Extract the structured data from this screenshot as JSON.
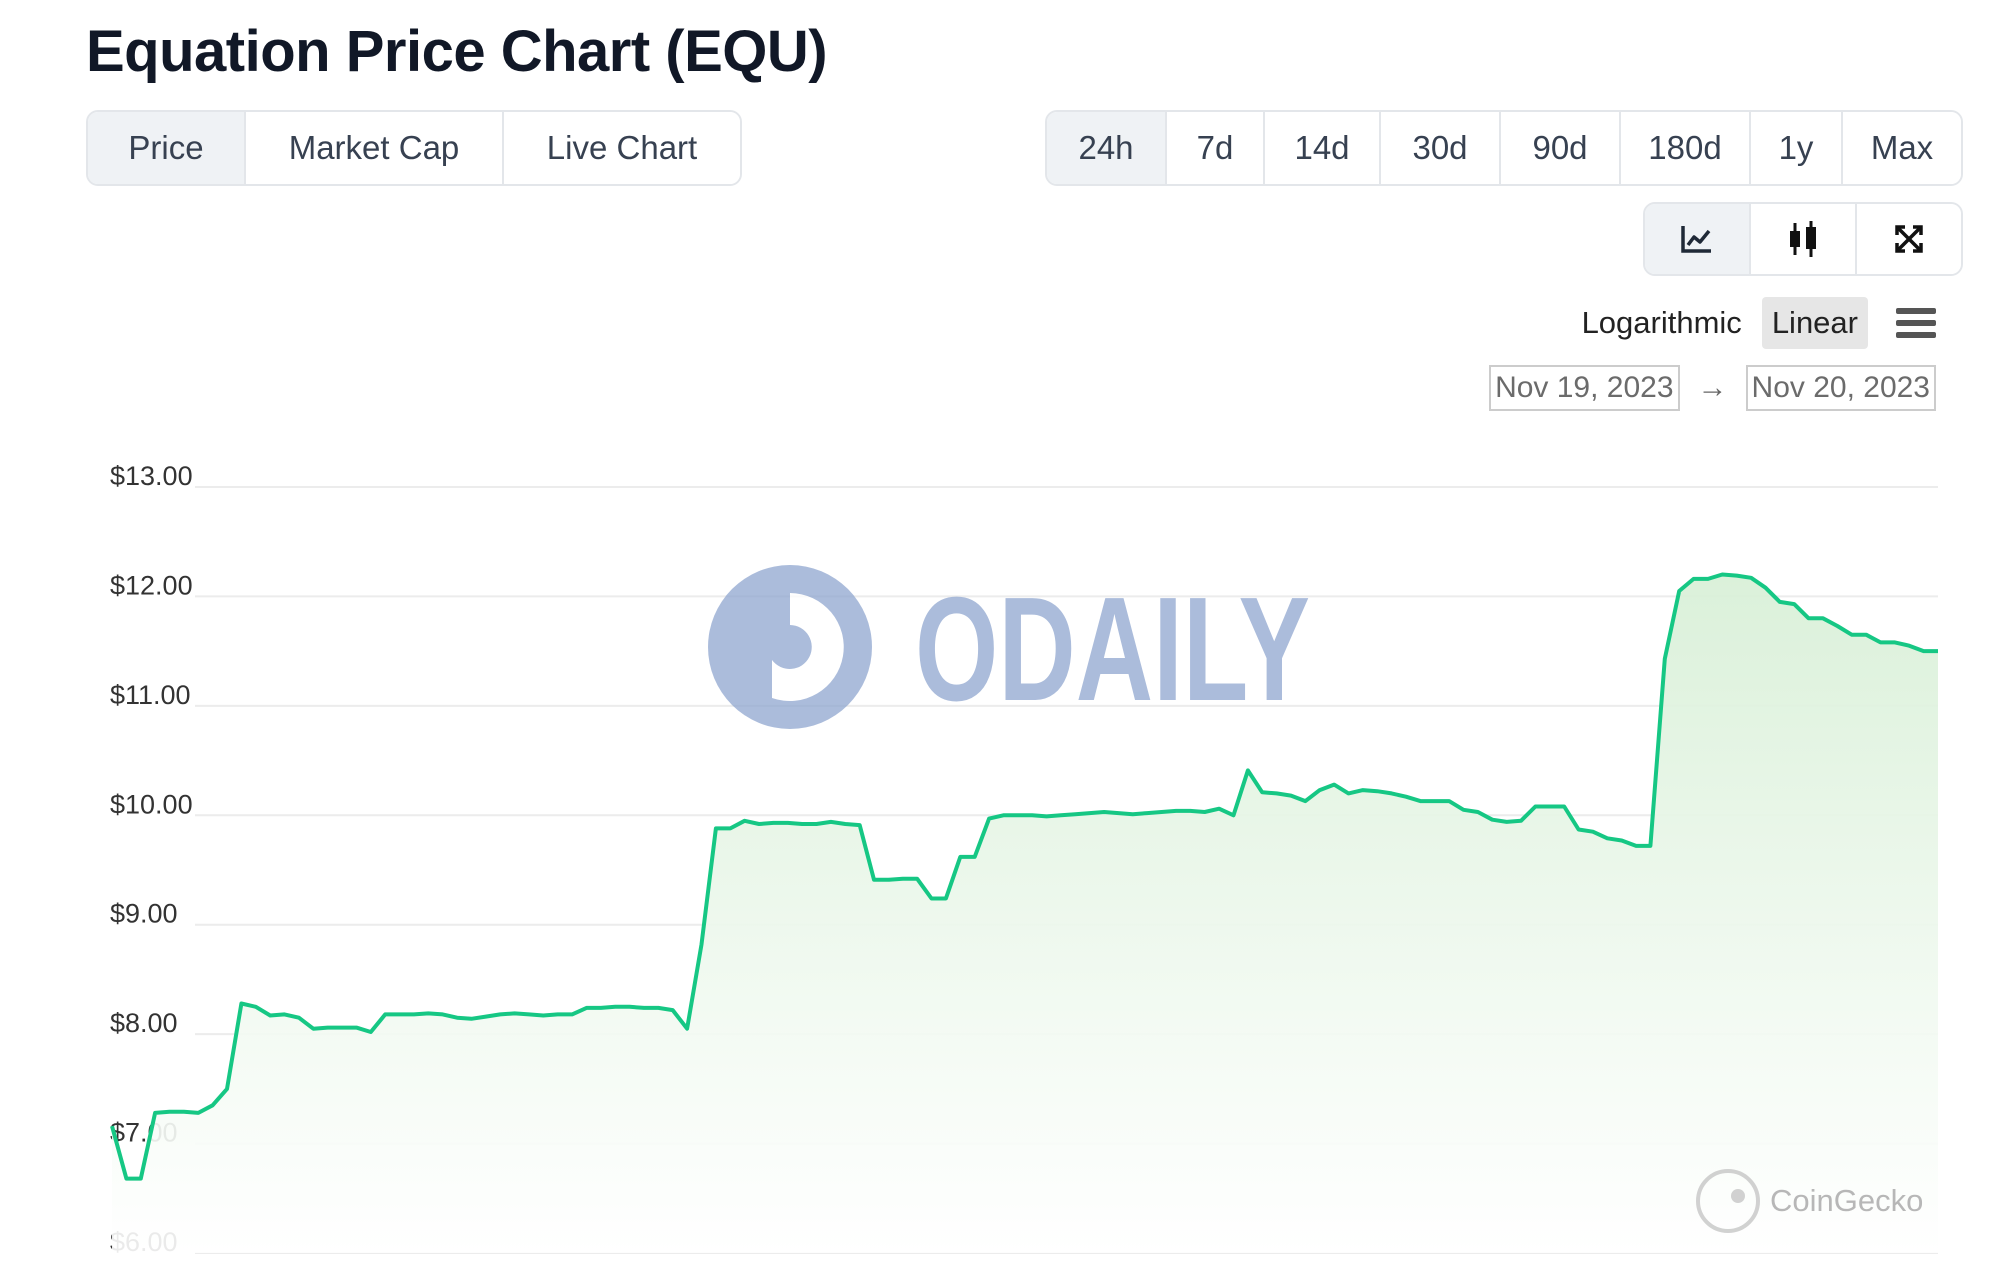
{
  "header": {
    "title": "Equation Price Chart (EQU)"
  },
  "tabs": [
    {
      "label": "Price",
      "active": true
    },
    {
      "label": "Market Cap",
      "active": false
    },
    {
      "label": "Live Chart",
      "active": false
    }
  ],
  "ranges": [
    {
      "label": "24h",
      "active": true
    },
    {
      "label": "7d",
      "active": false
    },
    {
      "label": "14d",
      "active": false
    },
    {
      "label": "30d",
      "active": false
    },
    {
      "label": "90d",
      "active": false
    },
    {
      "label": "180d",
      "active": false
    },
    {
      "label": "1y",
      "active": false
    },
    {
      "label": "Max",
      "active": false
    }
  ],
  "view_buttons": [
    {
      "icon": "line-chart-icon",
      "active": true
    },
    {
      "icon": "candlestick-icon",
      "active": false
    },
    {
      "icon": "fullscreen-icon",
      "active": false
    }
  ],
  "scale": {
    "logarithmic_label": "Logarithmic",
    "linear_label": "Linear",
    "selected": "Linear"
  },
  "date_range": {
    "from": "Nov 19, 2023",
    "arrow": "→",
    "to": "Nov 20, 2023"
  },
  "watermarks": {
    "odaily": "ODAILY",
    "coingecko": "CoinGecko"
  },
  "colors": {
    "line": "#16c784",
    "fill": "#d9f0d8",
    "tab_active_bg": "#eff2f5",
    "watermark": "#8fa6cf"
  },
  "chart_data": {
    "type": "area",
    "title": "Equation Price Chart (EQU)",
    "xlabel": "",
    "ylabel": "",
    "ylim": [
      6,
      13
    ],
    "y_ticks": [
      "$6.00",
      "$7.00",
      "$8.00",
      "$9.00",
      "$10.00",
      "$11.00",
      "$12.00",
      "$13.00"
    ],
    "grid": true,
    "series": [
      {
        "values": [
          7.16,
          6.68,
          6.68,
          7.28,
          7.29,
          7.29,
          7.28,
          7.35,
          7.5,
          8.28,
          8.25,
          8.17,
          8.18,
          8.15,
          8.05,
          8.06,
          8.06,
          8.06,
          8.02,
          8.18,
          8.18,
          8.18,
          8.19,
          8.18,
          8.15,
          8.14,
          8.16,
          8.18,
          8.19,
          8.18,
          8.17,
          8.18,
          8.18,
          8.24,
          8.24,
          8.25,
          8.25,
          8.24,
          8.24,
          8.22,
          8.05,
          8.82,
          9.88,
          9.88,
          9.95,
          9.92,
          9.93,
          9.93,
          9.92,
          9.92,
          9.94,
          9.92,
          9.91,
          9.41,
          9.41,
          9.42,
          9.42,
          9.24,
          9.24,
          9.62,
          9.62,
          9.97,
          10.0,
          10.0,
          10.0,
          9.99,
          10.0,
          10.01,
          10.02,
          10.03,
          10.02,
          10.01,
          10.02,
          10.03,
          10.04,
          10.04,
          10.03,
          10.06,
          10.0,
          10.41,
          10.21,
          10.2,
          10.18,
          10.13,
          10.23,
          10.28,
          10.2,
          10.23,
          10.22,
          10.2,
          10.17,
          10.13,
          10.13,
          10.13,
          10.05,
          10.03,
          9.96,
          9.94,
          9.95,
          10.08,
          10.08,
          10.08,
          9.87,
          9.85,
          9.79,
          9.77,
          9.72,
          9.72,
          11.43,
          12.05,
          12.16,
          12.16,
          12.2,
          12.19,
          12.17,
          12.08,
          11.95,
          11.93,
          11.8,
          11.8,
          11.73,
          11.65,
          11.65,
          11.58,
          11.58,
          11.55,
          11.5,
          11.5
        ]
      }
    ]
  }
}
